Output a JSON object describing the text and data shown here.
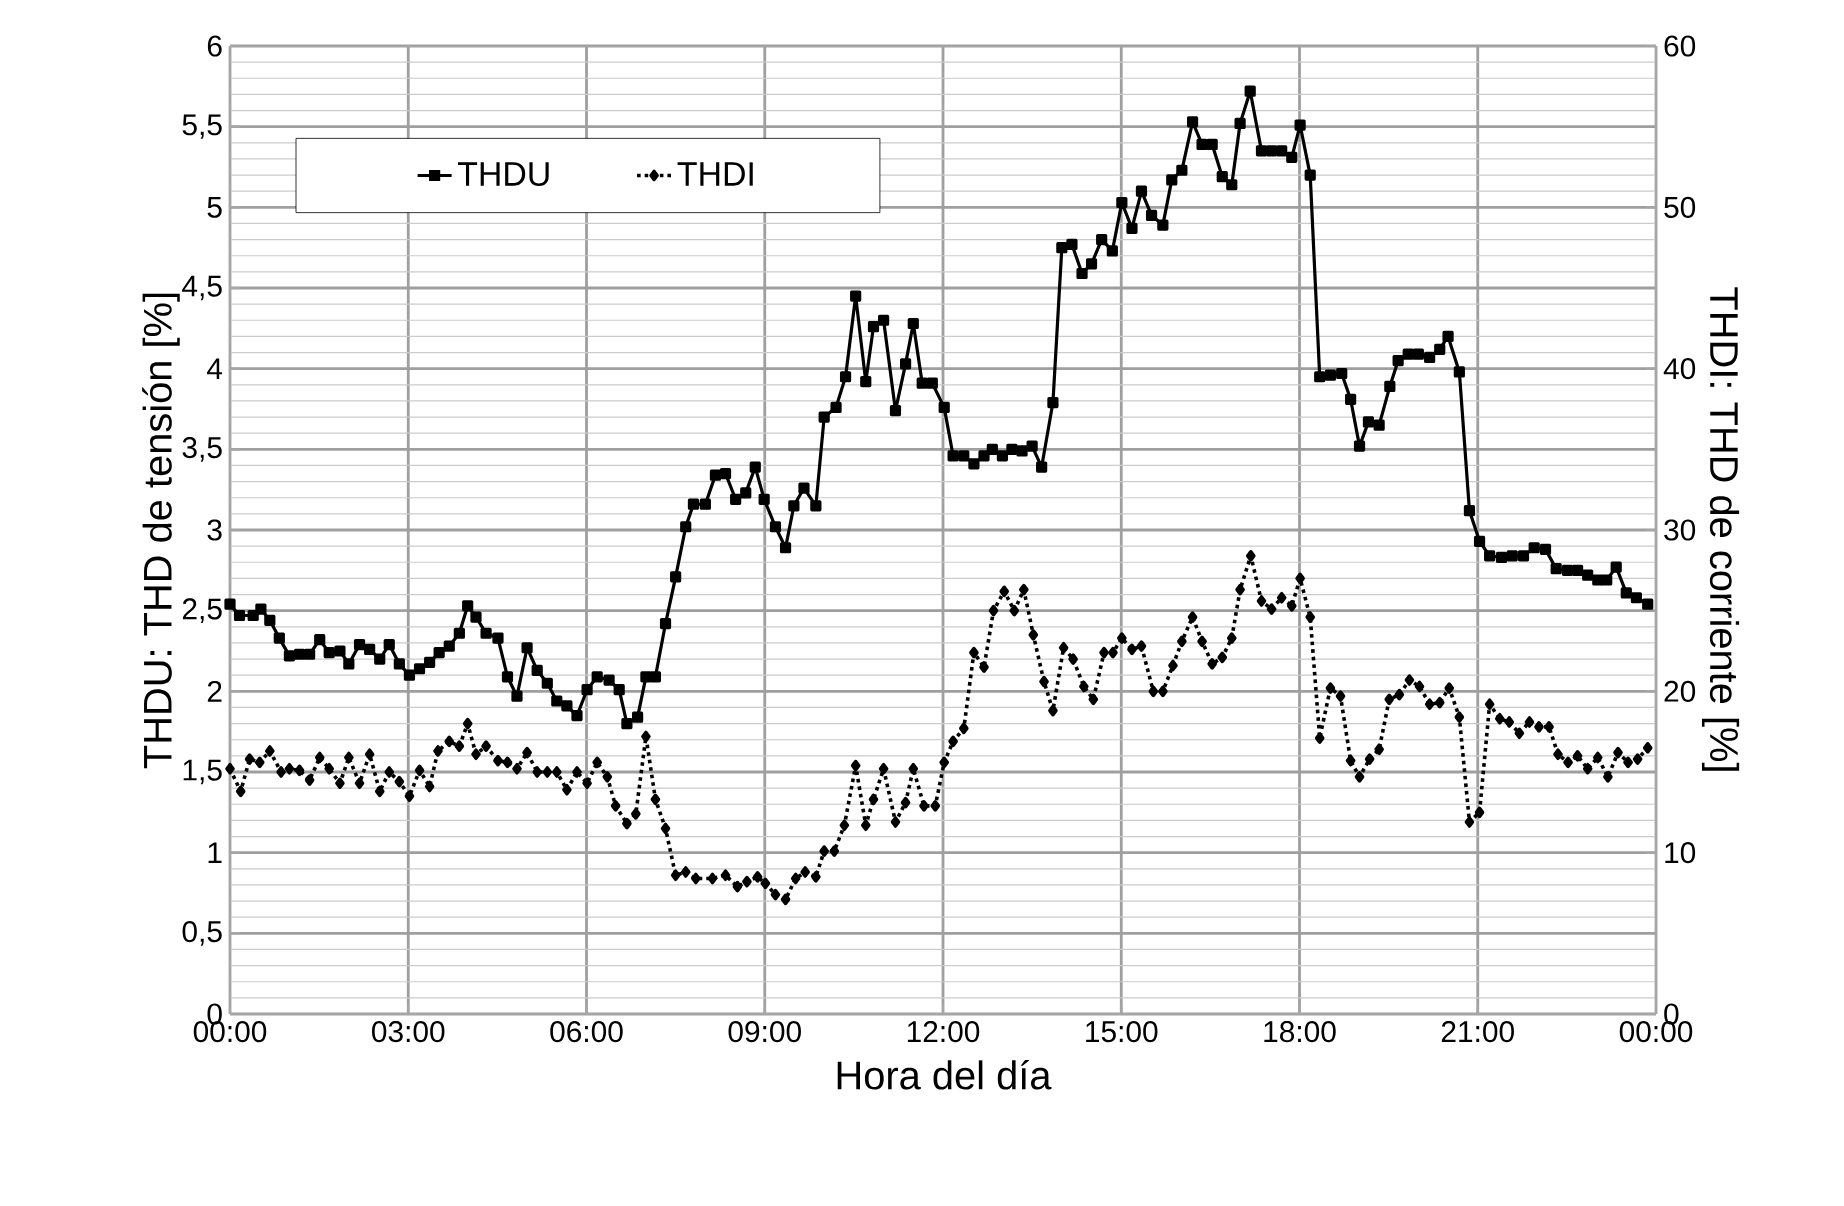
{
  "chart_data": {
    "type": "line",
    "xlabel": "Hora del día",
    "ylabel": "THDU: THD de tensión [%]",
    "y2label": "THDI: THD de corriente [%]",
    "xlim": [
      0,
      24
    ],
    "ylim": [
      0,
      6
    ],
    "y2lim": [
      0,
      60
    ],
    "xticks": [
      {
        "value": 0,
        "label": "00:00"
      },
      {
        "value": 3,
        "label": "03:00"
      },
      {
        "value": 6,
        "label": "06:00"
      },
      {
        "value": 9,
        "label": "09:00"
      },
      {
        "value": 12,
        "label": "12:00"
      },
      {
        "value": 15,
        "label": "15:00"
      },
      {
        "value": 18,
        "label": "18:00"
      },
      {
        "value": 21,
        "label": "21:00"
      },
      {
        "value": 24,
        "label": "00:00"
      }
    ],
    "yticks": [
      0,
      {
        "value": 0.5,
        "label": "0,5"
      },
      1,
      {
        "value": 1.5,
        "label": "1,5"
      },
      2,
      {
        "value": 2.5,
        "label": "2,5"
      },
      3,
      {
        "value": 3.5,
        "label": "3,5"
      },
      4,
      {
        "value": 4.5,
        "label": "4,5"
      },
      5,
      {
        "value": 5.5,
        "label": "5,5"
      },
      6
    ],
    "y2ticks": [
      0,
      10,
      20,
      30,
      40,
      50,
      60
    ],
    "grid": true,
    "legend": "top left",
    "series": [
      {
        "name": "THDU",
        "color": "#000000",
        "marker": "square",
        "line_style": "solid",
        "x": [
          0,
          0.16,
          0.39,
          0.52,
          0.67,
          0.83,
          1.0,
          1.17,
          1.34,
          1.51,
          1.67,
          1.85,
          2.0,
          2.18,
          2.35,
          2.52,
          2.68,
          2.85,
          3.02,
          3.19,
          3.36,
          3.52,
          3.69,
          3.86,
          4.0,
          4.14,
          4.31,
          4.51,
          4.67,
          4.83,
          5.0,
          5.17,
          5.34,
          5.5,
          5.67,
          5.84,
          6.01,
          6.18,
          6.38,
          6.55,
          6.68,
          6.86,
          7.0,
          7.16,
          7.33,
          7.5,
          7.67,
          7.8,
          8.0,
          8.17,
          8.34,
          8.51,
          8.68,
          8.84,
          8.99,
          9.18,
          9.35,
          9.49,
          9.66,
          9.86,
          10.0,
          10.2,
          10.36,
          10.53,
          10.7,
          10.83,
          11.0,
          11.2,
          11.37,
          11.5,
          11.65,
          11.82,
          12.02,
          12.17,
          12.35,
          12.52,
          12.69,
          12.83,
          13.0,
          13.16,
          13.33,
          13.5,
          13.66,
          13.85,
          14.0,
          14.17,
          14.34,
          14.5,
          14.67,
          14.85,
          15.01,
          15.18,
          15.34,
          15.51,
          15.7,
          15.85,
          16.02,
          16.2,
          16.36,
          16.53,
          16.7,
          16.86,
          17.0,
          17.17,
          17.36,
          17.53,
          17.7,
          17.87,
          18.01,
          18.18,
          18.34,
          18.52,
          18.71,
          18.86,
          19.01,
          19.16,
          19.34,
          19.52,
          19.66,
          19.83,
          20.0,
          20.19,
          20.36,
          20.5,
          20.69,
          20.86,
          21.03,
          21.2,
          21.4,
          21.58,
          21.77,
          21.95,
          22.14,
          22.32,
          22.51,
          22.68,
          22.85,
          23.02,
          23.17,
          23.33,
          23.5,
          23.67,
          23.86
        ],
        "values": [
          2.54,
          2.47,
          2.47,
          2.51,
          2.44,
          2.33,
          2.22,
          2.23,
          2.23,
          2.32,
          2.24,
          2.25,
          2.17,
          2.29,
          2.26,
          2.2,
          2.29,
          2.17,
          2.1,
          2.14,
          2.18,
          2.24,
          2.28,
          2.36,
          2.53,
          2.46,
          2.36,
          2.33,
          2.09,
          1.97,
          2.27,
          2.13,
          2.05,
          1.94,
          1.91,
          1.85,
          2.01,
          2.09,
          2.07,
          2.01,
          1.8,
          1.84,
          2.09,
          2.09,
          2.42,
          2.71,
          3.02,
          3.16,
          3.16,
          3.34,
          3.35,
          3.19,
          3.23,
          3.39,
          3.19,
          3.02,
          2.89,
          3.15,
          3.26,
          3.15,
          3.7,
          3.76,
          3.95,
          4.45,
          3.92,
          4.26,
          4.3,
          3.74,
          4.03,
          4.28,
          3.91,
          3.91,
          3.76,
          3.46,
          3.46,
          3.41,
          3.46,
          3.5,
          3.46,
          3.5,
          3.49,
          3.52,
          3.39,
          3.79,
          4.75,
          4.77,
          4.59,
          4.65,
          4.8,
          4.73,
          5.03,
          4.87,
          5.1,
          4.95,
          4.89,
          5.17,
          5.23,
          5.53,
          5.39,
          5.39,
          5.19,
          5.14,
          5.52,
          5.72,
          5.35,
          5.35,
          5.35,
          5.31,
          5.51,
          5.2,
          3.95,
          3.96,
          3.97,
          3.81,
          3.52,
          3.67,
          3.65,
          3.89,
          4.05,
          4.09,
          4.09,
          4.07,
          4.12,
          4.2,
          3.98,
          3.12,
          2.93,
          2.84,
          2.83,
          2.84,
          2.84,
          2.89,
          2.88,
          2.76,
          2.75,
          2.75,
          2.72,
          2.69,
          2.69,
          2.77,
          2.61,
          2.58,
          2.54
        ]
      },
      {
        "name": "THDI",
        "color": "#000000",
        "marker": "diamond",
        "line_style": "dotted",
        "axis": "y2",
        "x": [
          0,
          0.18,
          0.33,
          0.5,
          0.67,
          0.86,
          1.0,
          1.17,
          1.34,
          1.51,
          1.67,
          1.85,
          2.0,
          2.18,
          2.35,
          2.52,
          2.68,
          2.85,
          3.02,
          3.19,
          3.36,
          3.5,
          3.69,
          3.86,
          4.0,
          4.14,
          4.31,
          4.51,
          4.67,
          4.83,
          5.0,
          5.17,
          5.34,
          5.5,
          5.67,
          5.84,
          6.01,
          6.18,
          6.35,
          6.49,
          6.68,
          6.83,
          7.0,
          7.16,
          7.33,
          7.5,
          7.67,
          7.84,
          8.12,
          8.34,
          8.54,
          8.7,
          8.88,
          9.01,
          9.18,
          9.35,
          9.52,
          9.68,
          9.86,
          10.0,
          10.17,
          10.34,
          10.53,
          10.7,
          10.83,
          11.0,
          11.2,
          11.37,
          11.5,
          11.68,
          11.87,
          12.02,
          12.17,
          12.35,
          12.52,
          12.69,
          12.85,
          13.03,
          13.2,
          13.36,
          13.52,
          13.7,
          13.85,
          14.03,
          14.19,
          14.37,
          14.53,
          14.71,
          14.86,
          15.01,
          15.18,
          15.34,
          15.54,
          15.7,
          15.87,
          16.02,
          16.2,
          16.36,
          16.53,
          16.7,
          16.86,
          17.0,
          17.18,
          17.36,
          17.53,
          17.7,
          17.87,
          18.01,
          18.18,
          18.34,
          18.52,
          18.69,
          18.86,
          19.01,
          19.18,
          19.34,
          19.51,
          19.68,
          19.85,
          20.02,
          20.19,
          20.36,
          20.52,
          20.69,
          20.86,
          21.03,
          21.2,
          21.37,
          21.53,
          21.7,
          21.87,
          22.03,
          22.2,
          22.35,
          22.52,
          22.68,
          22.85,
          23.02,
          23.19,
          23.36,
          23.53,
          23.69,
          23.86
        ],
        "values": [
          15.2,
          13.8,
          15.8,
          15.6,
          16.3,
          15.0,
          15.2,
          15.1,
          14.5,
          15.9,
          15.2,
          14.3,
          15.9,
          14.3,
          16.1,
          13.8,
          15.0,
          14.4,
          13.5,
          15.1,
          14.1,
          16.3,
          16.9,
          16.6,
          18.0,
          16.1,
          16.6,
          15.7,
          15.6,
          15.2,
          16.2,
          15.0,
          15.0,
          15.0,
          13.9,
          15.0,
          14.3,
          15.6,
          14.7,
          12.9,
          11.8,
          12.4,
          17.2,
          13.3,
          11.5,
          8.6,
          8.8,
          8.4,
          8.4,
          8.6,
          7.9,
          8.2,
          8.5,
          8.1,
          7.4,
          7.1,
          8.4,
          8.8,
          8.5,
          10.1,
          10.1,
          11.7,
          15.4,
          11.7,
          13.3,
          15.2,
          11.9,
          13.1,
          15.2,
          12.9,
          12.9,
          15.6,
          16.9,
          17.7,
          22.4,
          21.5,
          25.0,
          26.2,
          25.0,
          26.3,
          23.5,
          20.6,
          18.8,
          22.7,
          22.0,
          20.3,
          19.5,
          22.4,
          22.4,
          23.3,
          22.6,
          22.8,
          20.0,
          20.0,
          21.6,
          23.1,
          24.6,
          23.1,
          21.7,
          22.1,
          23.3,
          26.3,
          28.4,
          25.6,
          25.1,
          25.8,
          25.3,
          27.0,
          24.6,
          17.1,
          20.2,
          19.7,
          15.7,
          14.7,
          15.8,
          16.4,
          19.5,
          19.8,
          20.7,
          20.3,
          19.2,
          19.3,
          20.2,
          18.4,
          11.9,
          12.5,
          19.2,
          18.3,
          18.1,
          17.4,
          18.1,
          17.8,
          17.8,
          16.1,
          15.6,
          16.0,
          15.2,
          15.9,
          14.7,
          16.2,
          15.6,
          15.8,
          16.5
        ]
      }
    ]
  }
}
